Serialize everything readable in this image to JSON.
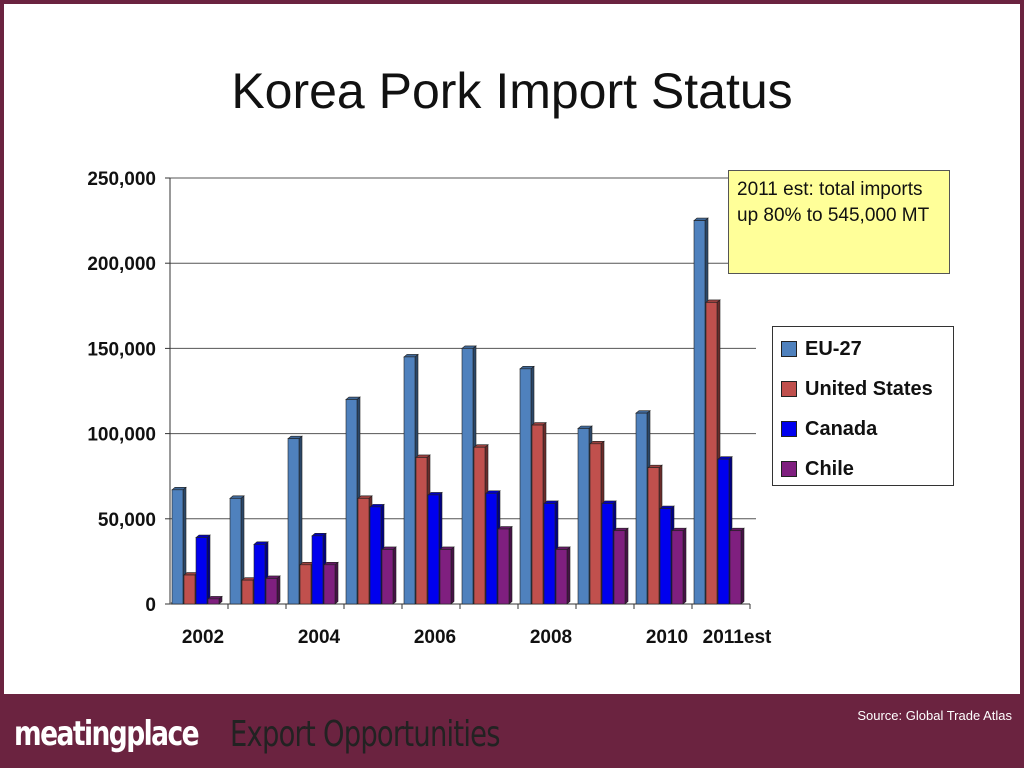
{
  "slide": {
    "title": "Korea Pork Import Status",
    "callout": "2011 est: total imports up 80% to 545,000 MT"
  },
  "footer": {
    "brand": "meatingplace",
    "tagline": "Export Opportunities",
    "source": "Source: Global Trade Atlas"
  },
  "chart_data": {
    "type": "bar",
    "title": "",
    "xlabel": "",
    "ylabel": "",
    "categories": [
      "2002",
      "2003",
      "2004",
      "2005",
      "2006",
      "2007",
      "2008",
      "2009",
      "2010",
      "2011est"
    ],
    "category_labels": [
      "2002",
      "",
      "2004",
      "",
      "2006",
      "",
      "2008",
      "",
      "2010",
      "2011est"
    ],
    "yticks": [
      "0",
      "50,000",
      "100,000",
      "150,000",
      "200,000",
      "250,000"
    ],
    "ylim": [
      0,
      250000
    ],
    "grid": true,
    "legend_position": "right",
    "style": "3d-clustered-column",
    "series": [
      {
        "name": "EU-27",
        "color": "#4f81bd",
        "values": [
          67000,
          62000,
          97000,
          120000,
          145000,
          150000,
          138000,
          103000,
          112000,
          225000
        ]
      },
      {
        "name": "United States",
        "color": "#c0504d",
        "values": [
          17000,
          14000,
          23000,
          62000,
          86000,
          92000,
          105000,
          94000,
          80000,
          177000
        ]
      },
      {
        "name": "Canada",
        "color": "#0000ee",
        "values": [
          39000,
          35000,
          40000,
          57000,
          64000,
          65000,
          59000,
          59000,
          56000,
          85000
        ]
      },
      {
        "name": "Chile",
        "color": "#7f1f7f",
        "values": [
          3000,
          15000,
          23000,
          32000,
          32000,
          44000,
          32000,
          43000,
          43000,
          43000
        ]
      }
    ]
  }
}
